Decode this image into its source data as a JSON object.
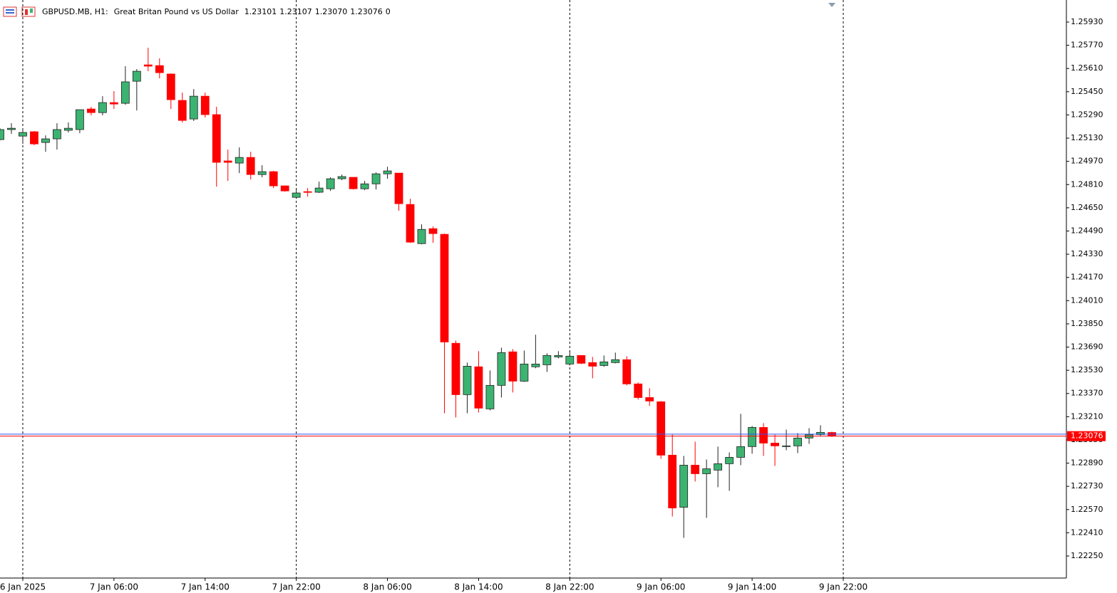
{
  "header": {
    "symbol": "GBPUSD.MB, H1:",
    "description": "Great Britan Pound vs US Dollar",
    "values": [
      1.23101,
      1.23107,
      {
        "value": 1.2307,
        "label": "1.23070"
      },
      1.23076,
      0
    ]
  },
  "chart_data": {
    "type": "candlestick",
    "categories": [
      null,
      null,
      "6 Jan 2025",
      null,
      null,
      null,
      null,
      null,
      null,
      null,
      "7 Jan 06:00",
      null,
      null,
      null,
      null,
      null,
      null,
      null,
      "7 Jan 14:00",
      null,
      null,
      null,
      null,
      null,
      null,
      null,
      "7 Jan 22:00",
      null,
      null,
      null,
      null,
      null,
      null,
      null,
      "8 Jan 06:00",
      null,
      null,
      null,
      null,
      null,
      null,
      null,
      "8 Jan 14:00",
      null,
      null,
      null,
      null,
      null,
      null,
      null,
      "8 Jan 22:00",
      null,
      null,
      null,
      null,
      null,
      null,
      null,
      "9 Jan 06:00",
      null,
      null,
      null,
      null,
      null,
      null,
      null,
      "9 Jan 14:00",
      null,
      null,
      null,
      null,
      null,
      null,
      null,
      "9 Jan 22:00"
    ],
    "open": [
      1.2512,
      1.25189,
      1.25144,
      1.25174,
      1.251,
      1.25125,
      1.25184,
      1.25189,
      1.25331,
      1.25306,
      1.25375,
      1.2537,
      1.25522,
      1.25635,
      1.2563,
      1.25572,
      1.2539,
      1.25262,
      1.25419,
      1.25292,
      1.24973,
      1.24958,
      1.24997,
      1.24879,
      1.24899,
      1.24801,
      1.24722,
      1.24761,
      1.24757,
      1.24781,
      1.2485,
      1.2486,
      1.24781,
      1.24815,
      1.24884,
      1.24889,
      1.24673,
      1.24403,
      1.24506,
      1.24467,
      1.23716,
      1.23362,
      1.23554,
      1.23264,
      1.23426,
      1.23657,
      1.23455,
      1.23554,
      1.23568,
      1.23622,
      1.23573,
      1.23632,
      1.23583,
      1.23563,
      1.23583,
      1.23603,
      1.23436,
      1.23342,
      1.23313,
      1.22945,
      1.22586,
      1.22876,
      1.22817,
      1.22842,
      1.22886,
      1.2293,
      1.23004,
      1.23136,
      1.23028,
      1.23004,
      1.23009,
      1.23063,
      1.23087,
      1.23101,
      null
    ],
    "high": [
      1.25198,
      1.25233,
      1.25189,
      1.25179,
      1.25149,
      1.25233,
      1.25238,
      1.25326,
      1.25346,
      1.25419,
      1.25454,
      1.25626,
      1.25606,
      1.25753,
      1.2568,
      1.25576,
      1.25444,
      1.25468,
      1.25444,
      1.25346,
      1.25051,
      1.25066,
      1.25036,
      1.24943,
      1.24904,
      1.24801,
      1.24781,
      1.24786,
      1.2483,
      1.2486,
      1.24879,
      1.2486,
      1.24835,
      1.24894,
      1.24933,
      1.24889,
      1.24712,
      1.24536,
      1.24521,
      1.24472,
      1.23735,
      1.23583,
      1.23662,
      1.23529,
      1.23686,
      1.23676,
      1.23666,
      1.23775,
      1.23647,
      1.23662,
      1.23666,
      1.23632,
      1.23622,
      1.23632,
      1.23652,
      1.23627,
      1.23446,
      1.23406,
      1.23318,
      1.23087,
      1.2294,
      1.23038,
      1.22915,
      1.23004,
      1.22964,
      1.2323,
      1.23146,
      1.23166,
      1.23087,
      1.23121,
      1.23097,
      1.23131,
      1.23151,
      1.23107,
      null
    ],
    "low": [
      1.25115,
      1.25159,
      1.2509,
      1.25081,
      1.25036,
      1.25051,
      1.25169,
      1.25164,
      1.25287,
      1.25287,
      1.25331,
      1.2536,
      1.25321,
      1.25591,
      1.25542,
      1.25331,
      1.25238,
      1.25248,
      1.25272,
      1.24796,
      1.24835,
      1.24889,
      1.24845,
      1.2486,
      1.24786,
      1.24761,
      1.24712,
      1.24727,
      1.24752,
      1.24766,
      1.2484,
      1.24776,
      1.24771,
      1.24776,
      1.2485,
      1.24629,
      1.24408,
      1.24398,
      1.24408,
      1.23234,
      1.23205,
      1.23234,
      1.23239,
      1.23254,
      1.23342,
      1.23377,
      1.2345,
      1.23544,
      1.23519,
      1.23612,
      1.23563,
      1.23573,
      1.23475,
      1.23554,
      1.23578,
      1.23426,
      1.23328,
      1.23284,
      1.2292,
      1.22522,
      1.22375,
      1.22763,
      1.22513,
      1.22724,
      1.22699,
      1.22876,
      1.22955,
      1.2294,
      1.22871,
      1.22979,
      1.22959,
      1.23023,
      1.23077,
      1.2307,
      null
    ],
    "close": [
      1.25189,
      1.25198,
      1.25169,
      1.2509,
      1.25125,
      1.25189,
      1.25198,
      1.25326,
      1.25306,
      1.25375,
      1.25365,
      1.25518,
      1.25591,
      1.25626,
      1.25581,
      1.25395,
      1.25252,
      1.25419,
      1.25292,
      1.24963,
      1.24963,
      1.24997,
      1.24879,
      1.24899,
      1.24801,
      1.24766,
      1.24752,
      1.24757,
      1.24786,
      1.2485,
      1.24865,
      1.24781,
      1.24815,
      1.24884,
      1.24904,
      1.24678,
      1.24413,
      1.24501,
      1.24472,
      1.23725,
      1.23362,
      1.23558,
      1.23269,
      1.23426,
      1.23652,
      1.23455,
      1.23573,
      1.23573,
      1.23632,
      1.23632,
      1.23627,
      1.23578,
      1.23558,
      1.23588,
      1.23603,
      1.23436,
      1.23342,
      1.23318,
      1.22945,
      1.22581,
      1.22876,
      1.22817,
      1.22851,
      1.22886,
      1.2293,
      1.23004,
      1.23136,
      1.23028,
      1.23009,
      1.23009,
      1.23063,
      1.23087,
      1.23102,
      1.23076,
      null
    ],
    "up_color": "#3cb371",
    "down_color": "#ff0000",
    "ylim": [
      1.22098,
      1.26082
    ],
    "yticks": [
      {
        "value": 1.2593,
        "label": "1.25930"
      },
      {
        "value": 1.2577,
        "label": "1.25770"
      },
      {
        "value": 1.2561,
        "label": "1.25610"
      },
      {
        "value": 1.2545,
        "label": "1.25450"
      },
      {
        "value": 1.2529,
        "label": "1.25290"
      },
      {
        "value": 1.2513,
        "label": "1.25130"
      },
      {
        "value": 1.2497,
        "label": "1.24970"
      },
      {
        "value": 1.2481,
        "label": "1.24810"
      },
      {
        "value": 1.2465,
        "label": "1.24650"
      },
      {
        "value": 1.2449,
        "label": "1.24490"
      },
      {
        "value": 1.2433,
        "label": "1.24330"
      },
      {
        "value": 1.2417,
        "label": "1.24170"
      },
      {
        "value": 1.2401,
        "label": "1.24010"
      },
      {
        "value": 1.2385,
        "label": "1.23850"
      },
      {
        "value": 1.2369,
        "label": "1.23690"
      },
      {
        "value": 1.2353,
        "label": "1.23530"
      },
      {
        "value": 1.2337,
        "label": "1.23370"
      },
      {
        "value": 1.2321,
        "label": "1.23210"
      },
      {
        "value": 1.2305,
        "label": "1.23050"
      },
      {
        "value": 1.2289,
        "label": "1.22890"
      },
      {
        "value": 1.2273,
        "label": "1.22730"
      },
      {
        "value": 1.2257,
        "label": "1.22570"
      },
      {
        "value": 1.2241,
        "label": "1.22410"
      },
      {
        "value": 1.2225,
        "label": "1.22250"
      }
    ],
    "last_price": 1.23076,
    "last_color": "#ff0000",
    "ask_price": 1.2309,
    "ask_color": "#3050ff"
  }
}
